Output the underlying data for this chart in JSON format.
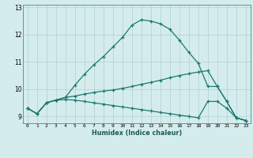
{
  "xlabel": "Humidex (Indice chaleur)",
  "x_values": [
    0,
    1,
    2,
    3,
    4,
    5,
    6,
    7,
    8,
    9,
    10,
    11,
    12,
    13,
    14,
    15,
    16,
    17,
    18,
    19,
    20,
    21,
    22,
    23
  ],
  "line_main": [
    9.3,
    9.1,
    9.5,
    9.6,
    9.7,
    10.15,
    10.55,
    10.9,
    11.2,
    11.55,
    11.9,
    12.35,
    12.55,
    12.5,
    12.4,
    12.2,
    11.8,
    11.35,
    10.95,
    10.1,
    10.1,
    9.55,
    8.95,
    8.85
  ],
  "line_mid": [
    9.3,
    9.1,
    9.5,
    9.6,
    9.7,
    9.75,
    9.82,
    9.88,
    9.93,
    9.97,
    10.03,
    10.1,
    10.18,
    10.25,
    10.33,
    10.42,
    10.5,
    10.57,
    10.63,
    10.68,
    10.1,
    9.55,
    8.95,
    8.85
  ],
  "line_low": [
    9.3,
    9.1,
    9.5,
    9.6,
    9.62,
    9.6,
    9.55,
    9.5,
    9.45,
    9.4,
    9.35,
    9.3,
    9.25,
    9.2,
    9.15,
    9.1,
    9.05,
    9.0,
    8.95,
    9.55,
    9.55,
    9.3,
    8.95,
    8.85
  ],
  "line_color": "#1a7a6e",
  "bg_color": "#d5eced",
  "grid_color": "#afd0d2",
  "ylim": [
    8.75,
    13.1
  ],
  "xlim": [
    -0.5,
    23.5
  ]
}
